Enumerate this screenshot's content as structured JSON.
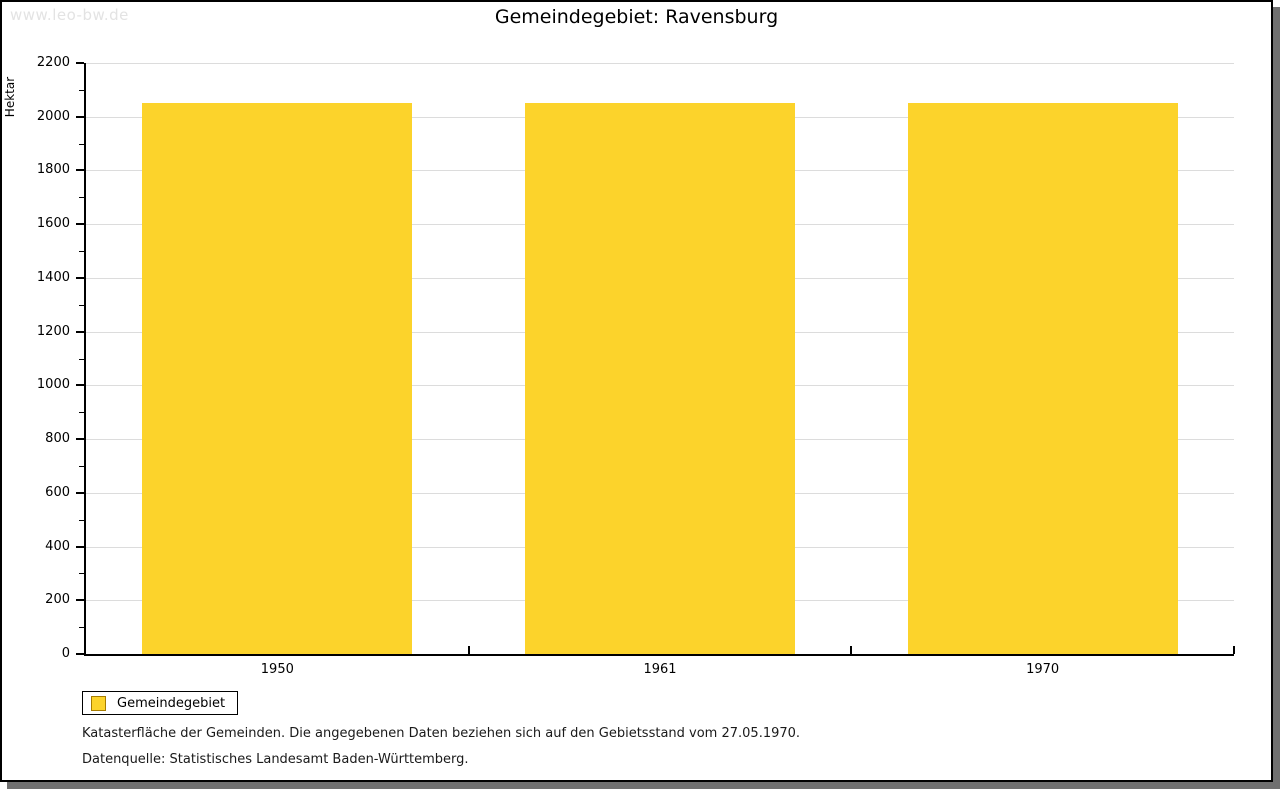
{
  "watermark": "www.leo-bw.de",
  "title": "Gemeindegebiet: Ravensburg",
  "chart_data": {
    "type": "bar",
    "title": "Gemeindegebiet: Ravensburg",
    "categories": [
      "1950",
      "1961",
      "1970"
    ],
    "values": [
      2050,
      2050,
      2050
    ],
    "series_name": "Gemeindegebiet",
    "xlabel": "",
    "ylabel": "Hektar",
    "ylim": [
      0,
      2200
    ],
    "ytick_step": 200,
    "yminor_step": 100,
    "grid": true,
    "legend_position": "bottom-left"
  },
  "legend": {
    "items": [
      {
        "label": "Gemeindegebiet",
        "color": "#fcd32b"
      }
    ]
  },
  "footer": {
    "line1": "Katasterfläche der Gemeinden. Die angegebenen Daten beziehen sich auf den Gebietsstand vom 27.05.1970.",
    "line2": "Datenquelle: Statistisches Landesamt Baden-Württemberg."
  },
  "colors": {
    "bar": "#fcd32b",
    "grid": "#dcdcdc",
    "axis": "#000000",
    "legend_swatch_border": "#a67c00",
    "watermark_text": "#e3e3e3",
    "frame_shadow": "#707070",
    "text": "#1a1a1a"
  }
}
